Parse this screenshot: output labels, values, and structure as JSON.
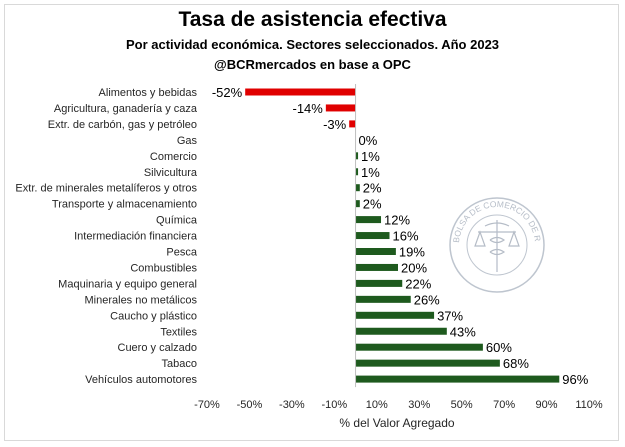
{
  "chart_data": {
    "type": "bar",
    "orientation": "horizontal",
    "title": "Tasa de asistencia efectiva",
    "subtitle": "Por actividad económica. Sectores seleccionados. Año 2023",
    "source": "@BCRmercados en base a OPC",
    "xlabel": "% del Valor Agregado",
    "xlim": [
      -70,
      110
    ],
    "xticks": [
      "-70%",
      "-50%",
      "-30%",
      "-10%",
      "10%",
      "30%",
      "50%",
      "70%",
      "90%",
      "110%"
    ],
    "xtick_values": [
      -70,
      -50,
      -30,
      -10,
      10,
      30,
      50,
      70,
      90,
      110
    ],
    "grid": false,
    "categories": [
      "Alimentos y bebidas",
      "Agricultura, ganadería y caza",
      "Extr. de carbón, gas y petróleo",
      "Gas",
      "Comercio",
      "Silvicultura",
      "Extr. de minerales metalíferos y otros",
      "Transporte y almacenamiento",
      "Química",
      "Intermediación financiera",
      "Pesca",
      "Combustibles",
      "Maquinaria y equipo general",
      "Minerales no metálicos",
      "Caucho y plástico",
      "Textiles",
      "Cuero y calzado",
      "Tabaco",
      "Vehículos automotores"
    ],
    "values": [
      -52,
      -14,
      -3,
      0,
      1,
      1,
      2,
      2,
      12,
      16,
      19,
      20,
      22,
      26,
      37,
      43,
      60,
      68,
      96
    ],
    "value_labels": [
      "-52%",
      "-14%",
      "-3%",
      "0%",
      "1%",
      "1%",
      "2%",
      "2%",
      "12%",
      "16%",
      "19%",
      "20%",
      "22%",
      "26%",
      "37%",
      "43%",
      "60%",
      "68%",
      "96%"
    ],
    "colors": {
      "negative": "#e00000",
      "positive": "#1e5a1e"
    }
  },
  "watermark": {
    "text": "BOLSA DE COMERCIO DE ROSARIO",
    "icon": "caduceus-scales-seal-icon"
  }
}
